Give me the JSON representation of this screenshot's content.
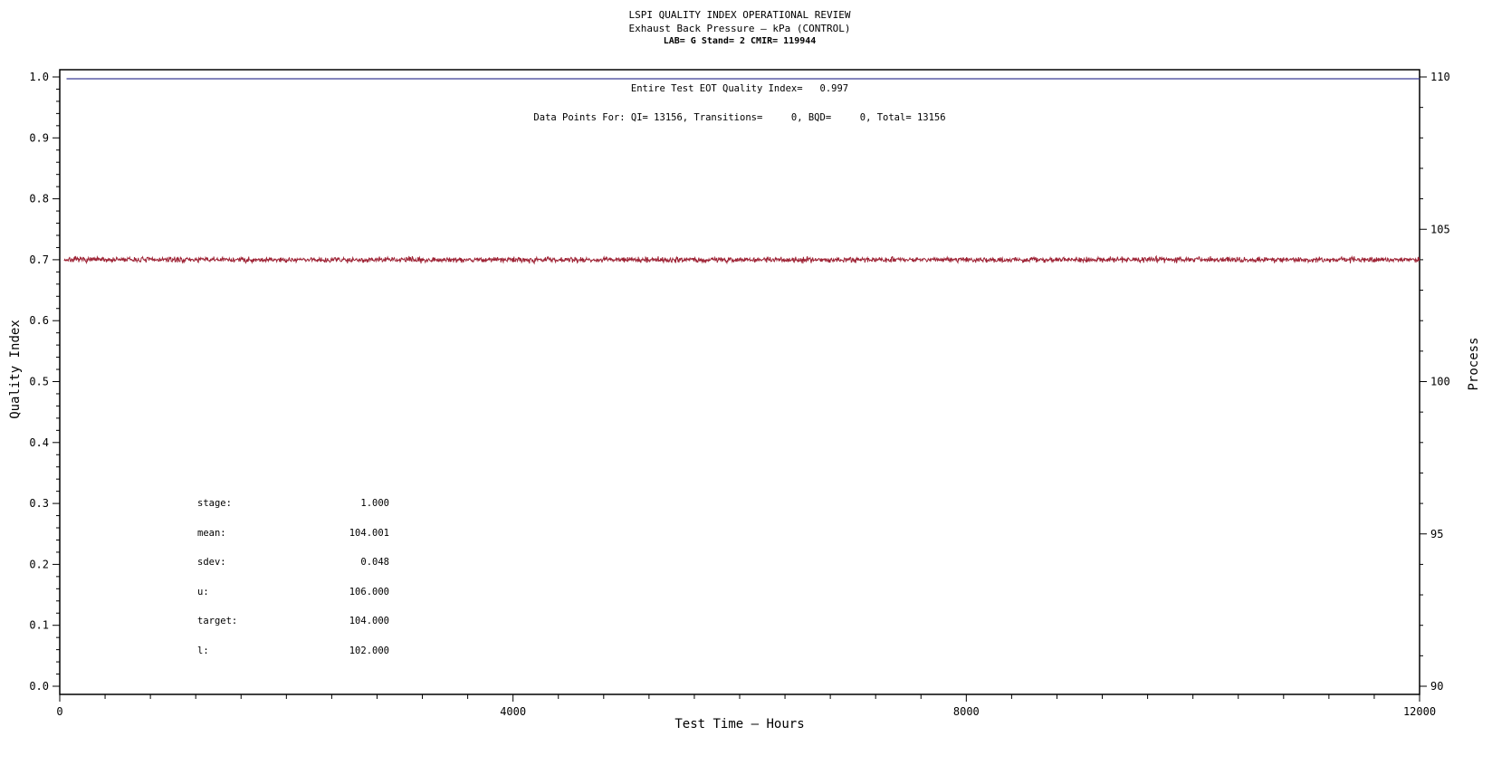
{
  "page": {
    "background": "#FFFFFF"
  },
  "chart_data": {
    "type": "line",
    "title": "LSPI QUALITY INDEX OPERATIONAL REVIEW",
    "subtitle": "Exhaust Back Pressure — kPa (CONTROL)",
    "lab_line": "LAB= G Stand= 2 CMIR= 119944",
    "annotations": [
      "Entire Test EOT Quality Index=   0.997",
      "Data Points For: QI= 13156, Transitions=     0, BQD=     0, Total= 13156"
    ],
    "x_axis": {
      "label": "Test Time — Hours",
      "min": 0,
      "max": 12000,
      "major_ticks": [
        0,
        4000,
        8000,
        12000
      ],
      "tick_labels": [
        "0",
        "4000",
        "8000",
        "12000"
      ],
      "minor_step": 400
    },
    "y_left": {
      "label": "Quality Index",
      "min": 0.0,
      "max": 1.0,
      "major_ticks": [
        0.0,
        0.1,
        0.2,
        0.3,
        0.4,
        0.5,
        0.6,
        0.7,
        0.8,
        0.9,
        1.0
      ],
      "tick_labels": [
        "0.0",
        "0.1",
        "0.2",
        "0.3",
        "0.4",
        "0.5",
        "0.6",
        "0.7",
        "0.8",
        "0.9",
        "1.0"
      ],
      "minor_step": 0.02
    },
    "y_right": {
      "label": "Process",
      "min": 90,
      "max": 110,
      "major_ticks": [
        90,
        95,
        100,
        105,
        110
      ],
      "tick_labels": [
        "90",
        "95",
        "100",
        "105",
        "110"
      ],
      "minor_step": 1
    },
    "grid": false,
    "legend": "none",
    "series": [
      {
        "name": "EOT Quality Index",
        "axis": "left",
        "style": "flat-line",
        "color": "#3C3E96",
        "value": 0.997,
        "x_start": 60,
        "x_end": 12000
      },
      {
        "name": "Exhaust Back Pressure (Process)",
        "axis": "right",
        "style": "noisy-line",
        "color": "#9E2335",
        "mean": 104.001,
        "sdev": 0.048,
        "n_points": 13156,
        "x_start": 40,
        "x_end": 12000
      }
    ],
    "stats": [
      {
        "label": "stage:",
        "value": "1.000"
      },
      {
        "label": "mean:",
        "value": "104.001"
      },
      {
        "label": "sdev:",
        "value": "0.048"
      },
      {
        "label": "u:",
        "value": "106.000"
      },
      {
        "label": "target:",
        "value": "104.000"
      },
      {
        "label": "l:",
        "value": "102.000"
      }
    ],
    "colors": {
      "frame": "#000000",
      "text": "#000000",
      "quality_line": "#3C3E96",
      "process_line": "#9E2335"
    }
  }
}
